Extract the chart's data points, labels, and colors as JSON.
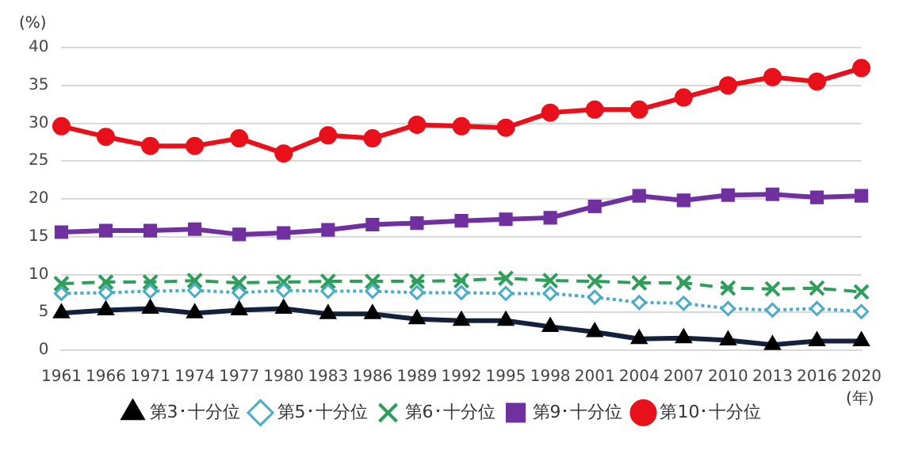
{
  "chart_data": {
    "type": "line",
    "ylabel": "(%)",
    "xlabel": "(年)",
    "categories": [
      "1961",
      "1966",
      "1971",
      "1974",
      "1977",
      "1980",
      "1983",
      "1986",
      "1989",
      "1992",
      "1995",
      "1998",
      "2001",
      "2004",
      "2007",
      "2010",
      "2013",
      "2016",
      "2020"
    ],
    "series": [
      {
        "name": "第3･十分位",
        "color": "#14213d",
        "marker": "triangle",
        "line_style": "solid",
        "values": [
          4.9,
          5.3,
          5.5,
          4.9,
          5.3,
          5.5,
          4.8,
          4.8,
          4.1,
          3.9,
          3.9,
          3.1,
          2.4,
          1.5,
          1.6,
          1.3,
          0.7,
          1.2,
          1.2
        ]
      },
      {
        "name": "第5･十分位",
        "color": "#4bacc6",
        "marker": "diamond",
        "line_style": "dotted",
        "values": [
          7.5,
          7.6,
          7.8,
          7.9,
          7.6,
          7.9,
          7.8,
          7.8,
          7.6,
          7.6,
          7.5,
          7.5,
          7.0,
          6.3,
          6.2,
          5.5,
          5.3,
          5.5,
          5.1
        ]
      },
      {
        "name": "第6･十分位",
        "color": "#2e9e5b",
        "marker": "cross",
        "line_style": "dashed",
        "values": [
          8.8,
          9.0,
          9.0,
          9.2,
          8.9,
          9.0,
          9.1,
          9.1,
          9.1,
          9.2,
          9.5,
          9.2,
          9.1,
          8.9,
          8.9,
          8.2,
          8.1,
          8.2,
          7.7
        ]
      },
      {
        "name": "第9･十分位",
        "color": "#7030a0",
        "marker": "square",
        "line_style": "solid",
        "values": [
          15.6,
          15.8,
          15.8,
          16.0,
          15.3,
          15.5,
          15.9,
          16.6,
          16.8,
          17.1,
          17.3,
          17.5,
          19.0,
          20.4,
          19.8,
          20.5,
          20.6,
          20.2,
          20.4
        ]
      },
      {
        "name": "第10･十分位",
        "color": "#e8101a",
        "marker": "circle",
        "line_style": "solid",
        "values": [
          29.6,
          28.2,
          27.0,
          27.0,
          28.0,
          26.0,
          28.4,
          28.0,
          29.8,
          29.6,
          29.4,
          31.4,
          31.8,
          31.8,
          33.4,
          35.0,
          36.1,
          35.5,
          37.3
        ]
      }
    ],
    "ylim": [
      0,
      40
    ],
    "yticks": [
      0,
      5,
      10,
      15,
      20,
      25,
      30,
      35,
      40
    ],
    "grid": "y",
    "legend": "bottom"
  }
}
